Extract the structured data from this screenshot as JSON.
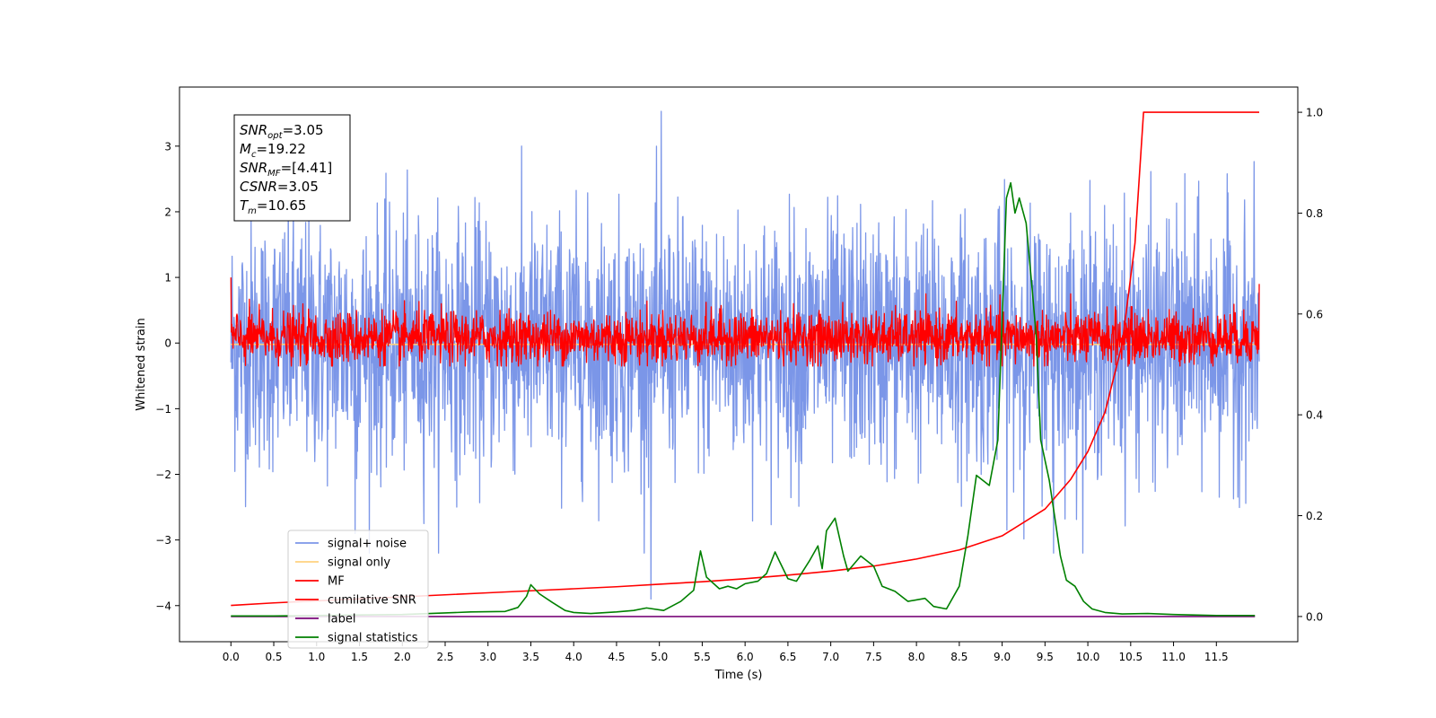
{
  "chart_data": {
    "type": "line",
    "xlabel": "Time (s)",
    "ylabel": "Whitened strain",
    "xlim": [
      -0.6,
      12.45
    ],
    "ylim": [
      -4.55,
      3.9
    ],
    "y2lim": [
      -0.05,
      1.05
    ],
    "x_ticks": [
      0.0,
      0.5,
      1.0,
      1.5,
      2.0,
      2.5,
      3.0,
      3.5,
      4.0,
      4.5,
      5.0,
      5.5,
      6.0,
      6.5,
      7.0,
      7.5,
      8.0,
      8.5,
      9.0,
      9.5,
      10.0,
      10.5,
      11.0,
      11.5
    ],
    "x_tick_labels": [
      "0.0",
      "0.5",
      "1.0",
      "1.5",
      "2.0",
      "2.5",
      "3.0",
      "3.5",
      "4.0",
      "4.5",
      "5.0",
      "5.5",
      "6.0",
      "6.5",
      "7.0",
      "7.5",
      "8.0",
      "8.5",
      "9.0",
      "9.5",
      "10.0",
      "10.5",
      "11.0",
      "11.5"
    ],
    "y_ticks": [
      -4,
      -3,
      -2,
      -1,
      0,
      1,
      2,
      3
    ],
    "y_tick_labels": [
      "−4",
      "−3",
      "−2",
      "−1",
      "0",
      "1",
      "2",
      "3"
    ],
    "y2_ticks": [
      0.0,
      0.2,
      0.4,
      0.6,
      0.8,
      1.0
    ],
    "y2_tick_labels": [
      "0.0",
      "0.2",
      "0.4",
      "0.6",
      "0.8",
      "1.0"
    ],
    "grid": false,
    "legend_position": "lower-left",
    "annotation": {
      "lines": [
        {
          "base": "SNR",
          "sub": "opt",
          "value": "=3.05"
        },
        {
          "base": "M",
          "sub": "c",
          "value": "=19.22"
        },
        {
          "base": "SNR",
          "sub": "MF",
          "value": "=[4.41]"
        },
        {
          "base": "CSNR",
          "sub": "",
          "value": "=3.05"
        },
        {
          "base": "T",
          "sub": "m",
          "value": "=10.65"
        }
      ]
    },
    "series": [
      {
        "name": "signal+ noise",
        "color": "#7b96e8",
        "axis": "left",
        "kind": "noise",
        "x_range": [
          0.0,
          12.0
        ],
        "amplitude_std": 0.95,
        "peaks": [
          {
            "x": 5.02,
            "y": 3.53
          },
          {
            "x": 4.9,
            "y": -3.9
          },
          {
            "x": 1.45,
            "y": -2.9
          },
          {
            "x": 9.6,
            "y": -3.2
          }
        ]
      },
      {
        "name": "signal only",
        "color": "#ffd27f",
        "axis": "left",
        "kind": "constant",
        "x": [
          0.0,
          11.99
        ],
        "y": [
          -0.02,
          -0.02
        ]
      },
      {
        "name": "MF",
        "color": "#ff0000",
        "axis": "left",
        "kind": "noise",
        "x_range": [
          0.0,
          12.0
        ],
        "amplitude_std": 0.22
      },
      {
        "name": "cumilative SNR",
        "color": "#ff0000",
        "axis": "right",
        "x": [
          0.0,
          0.5,
          1.0,
          1.5,
          2.0,
          2.5,
          3.0,
          3.5,
          4.0,
          4.5,
          5.0,
          5.5,
          6.0,
          6.5,
          7.0,
          7.5,
          8.0,
          8.5,
          9.0,
          9.5,
          9.8,
          10.0,
          10.2,
          10.4,
          10.55,
          10.65,
          12.0
        ],
        "y": [
          0.022,
          0.027,
          0.031,
          0.035,
          0.039,
          0.043,
          0.047,
          0.051,
          0.055,
          0.059,
          0.064,
          0.069,
          0.075,
          0.082,
          0.09,
          0.1,
          0.114,
          0.132,
          0.16,
          0.213,
          0.272,
          0.327,
          0.405,
          0.54,
          0.74,
          1.0,
          1.0
        ]
      },
      {
        "name": "label",
        "color": "#7a0a7a",
        "axis": "right",
        "x": [
          0.0,
          11.95
        ],
        "y": [
          0.0,
          0.0
        ]
      },
      {
        "name": "signal statistics",
        "color": "#008000",
        "axis": "right",
        "x": [
          0.0,
          0.5,
          1.0,
          1.5,
          2.0,
          2.5,
          2.8,
          3.2,
          3.35,
          3.45,
          3.5,
          3.6,
          3.75,
          3.9,
          4.0,
          4.2,
          4.5,
          4.7,
          4.85,
          5.05,
          5.25,
          5.4,
          5.48,
          5.55,
          5.7,
          5.8,
          5.9,
          6.0,
          6.15,
          6.25,
          6.35,
          6.4,
          6.5,
          6.6,
          6.75,
          6.85,
          6.9,
          6.95,
          7.05,
          7.15,
          7.2,
          7.35,
          7.5,
          7.6,
          7.75,
          7.9,
          8.1,
          8.2,
          8.35,
          8.5,
          8.6,
          8.7,
          8.85,
          8.95,
          9.05,
          9.1,
          9.15,
          9.2,
          9.28,
          9.35,
          9.4,
          9.45,
          9.55,
          9.62,
          9.68,
          9.75,
          9.85,
          9.95,
          10.05,
          10.2,
          10.4,
          10.7,
          11.0,
          11.5,
          11.95
        ],
        "y": [
          0.001,
          0.001,
          0.002,
          0.003,
          0.004,
          0.007,
          0.009,
          0.01,
          0.018,
          0.04,
          0.063,
          0.045,
          0.028,
          0.012,
          0.008,
          0.006,
          0.009,
          0.012,
          0.017,
          0.012,
          0.03,
          0.052,
          0.13,
          0.078,
          0.055,
          0.06,
          0.055,
          0.065,
          0.07,
          0.085,
          0.128,
          0.11,
          0.075,
          0.07,
          0.11,
          0.14,
          0.095,
          0.17,
          0.195,
          0.12,
          0.09,
          0.12,
          0.1,
          0.06,
          0.05,
          0.03,
          0.036,
          0.02,
          0.015,
          0.06,
          0.16,
          0.28,
          0.26,
          0.35,
          0.83,
          0.86,
          0.8,
          0.83,
          0.78,
          0.65,
          0.55,
          0.35,
          0.27,
          0.19,
          0.12,
          0.072,
          0.06,
          0.03,
          0.015,
          0.008,
          0.005,
          0.006,
          0.004,
          0.002,
          0.002
        ]
      }
    ]
  }
}
